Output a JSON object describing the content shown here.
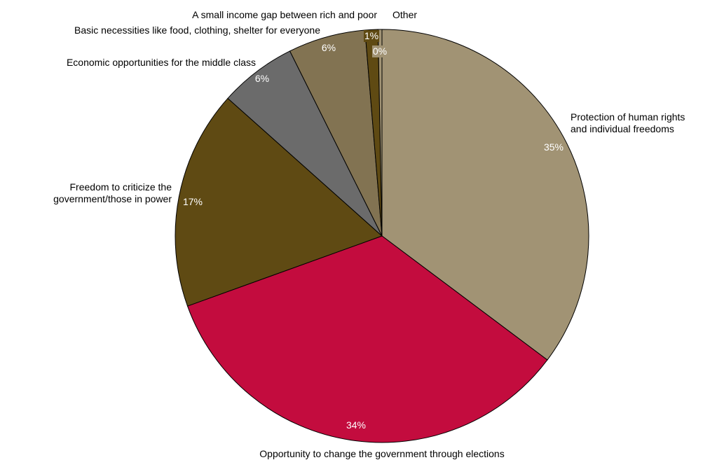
{
  "chart_data": {
    "type": "pie",
    "start_angle_deg": 0,
    "direction": "clockwise",
    "slices": [
      {
        "label": [
          "Protection of human rights",
          "and individual freedoms"
        ],
        "value": 35,
        "value_label": "35%",
        "color": "#a19374"
      },
      {
        "label": [
          "Opportunity to change the government through elections"
        ],
        "value": 34,
        "value_label": "34%",
        "color": "#c30c3e"
      },
      {
        "label": [
          "Freedom to criticize the",
          "government/those in power"
        ],
        "value": 17,
        "value_label": "17%",
        "color": "#5f4a13"
      },
      {
        "label": [
          "Economic opportunities for the middle class"
        ],
        "value": 6,
        "value_label": "6%",
        "color": "#6b6b6b"
      },
      {
        "label": [
          "Basic necessities like food, clothing, shelter for everyone"
        ],
        "value": 6,
        "value_label": "6%",
        "color": "#827352"
      },
      {
        "label": [
          "A small income gap between rich and poor"
        ],
        "value": 1,
        "value_label": "1%",
        "color": "#5f4a13"
      },
      {
        "label": [
          "Other"
        ],
        "value": 0.3,
        "value_label": "0%",
        "color": "#a19374"
      }
    ]
  }
}
